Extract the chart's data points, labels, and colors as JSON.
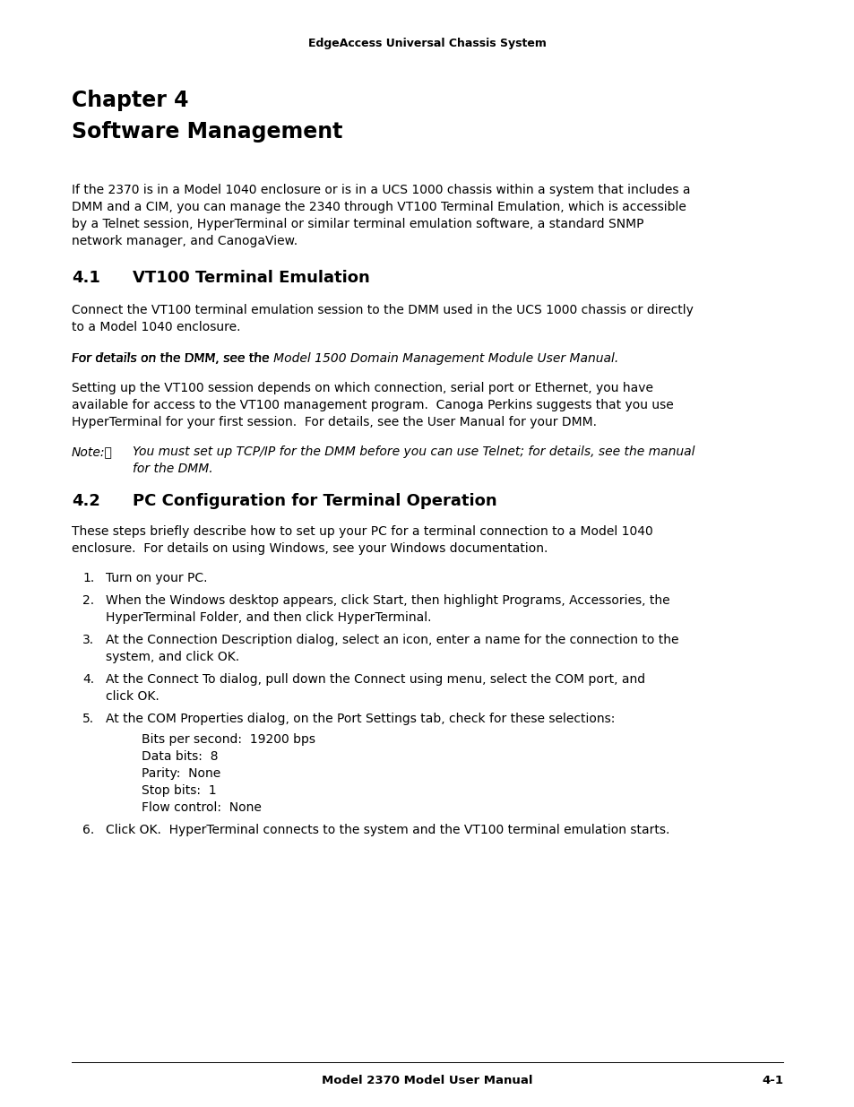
{
  "bg_color": "#ffffff",
  "header_text": "EdgeAccess Universal Chassis System",
  "footer_left": "Model 2370 Model User Manual",
  "footer_right": "4-1",
  "chapter_title_line1": "Chapter 4",
  "chapter_title_line2": "Software Management",
  "intro_paragraph": "If the 2370 is in a Model 1040 enclosure or is in a UCS 1000 chassis within a system that includes a\nDMM and a CIM, you can manage the 2340 through VT100 Terminal Emulation, which is accessible\nby a Telnet session, HyperTerminal or similar terminal emulation software, a standard SNMP\nnetwork manager, and CanogaView.",
  "section1_heading_num": "4.1",
  "section1_heading_text": "VT100 Terminal Emulation",
  "section1_para1": "Connect the VT100 terminal emulation session to the DMM used in the UCS 1000 chassis or directly\nto a Model 1040 enclosure.",
  "section1_para2_normal": "For details on the DMM, see the ",
  "section1_para2_italic": "Model 1500 Domain Management Module User Manual",
  "section1_para2_end": ".",
  "section1_para3": "Setting up the VT100 session depends on which connection, serial port or Ethernet, you have\navailable for access to the VT100 management program.  Canoga Perkins suggests that you use\nHyperTerminal for your first session.  For details, see the User Manual for your DMM.",
  "note_label": "Note:\t",
  "note_line1": "You must set up TCP/IP for the DMM before you can use Telnet; for details, see the manual",
  "note_line2": "for the DMM.",
  "section2_heading_num": "4.2",
  "section2_heading_text": "PC Configuration for Terminal Operation",
  "section2_intro": "These steps briefly describe how to set up your PC for a terminal connection to a Model 1040\nenclosure.  For details on using Windows, see your Windows documentation.",
  "steps": [
    "Turn on your PC.",
    "When the Windows desktop appears, click Start, then highlight Programs, Accessories, the\nHyperTerminal Folder, and then click HyperTerminal.",
    "At the Connection Description dialog, select an icon, enter a name for the connection to the\nsystem, and click OK.",
    "At the Connect To dialog, pull down the Connect using menu, select the COM port, and\nclick OK.",
    "At the COM Properties dialog, on the Port Settings tab, check for these selections:",
    "Click OK.  HyperTerminal connects to the system and the VT100 terminal emulation starts."
  ],
  "settings_lines": [
    "Bits per second:  19200 bps",
    "Data bits:  8",
    "Parity:  None",
    "Stop bits:  1",
    "Flow control:  None"
  ]
}
